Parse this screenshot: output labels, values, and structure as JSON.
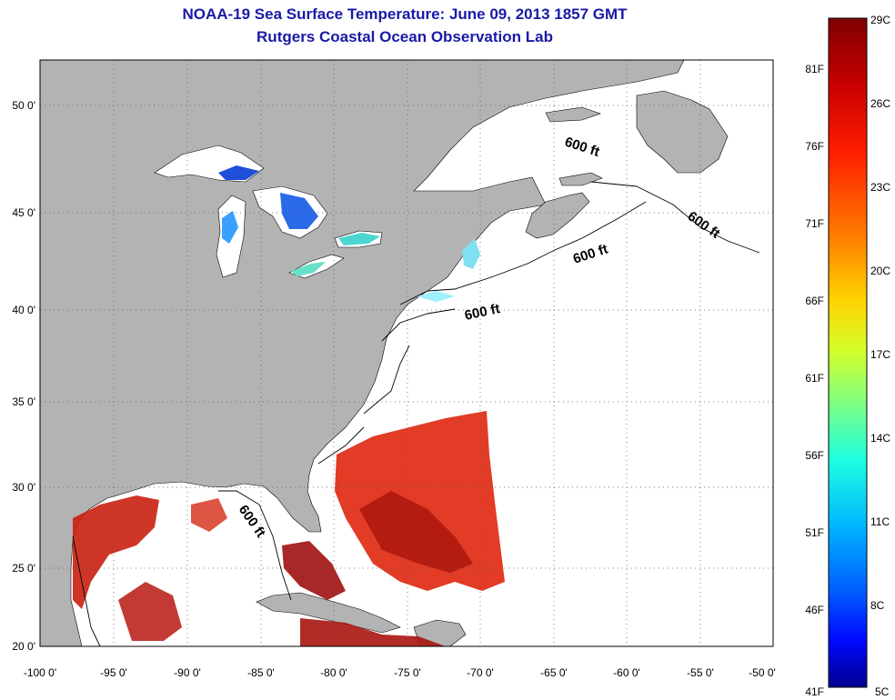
{
  "title": "NOAA-19 Sea Surface Temperature:  June 09, 2013 1857 GMT",
  "subtitle": "Rutgers Coastal Ocean Observation Lab",
  "map": {
    "lon_labels": [
      "-100 0'",
      "-95 0'",
      "-90 0'",
      "-85 0'",
      "-80 0'",
      "-75 0'",
      "-70 0'",
      "-65 0'",
      "-60 0'",
      "-55 0'",
      "-50 0'"
    ],
    "lat_labels": [
      "50 0'",
      "45 0'",
      "40 0'",
      "35 0'",
      "30 0'",
      "25 0'",
      "20 0'"
    ],
    "contour_labels": [
      "600 ft",
      "600 ft",
      "600 ft",
      "600 ft",
      "600 ft"
    ]
  },
  "colorbar": {
    "c_labels": [
      "29C",
      "26C",
      "23C",
      "20C",
      "17C",
      "14C",
      "11C",
      "8C",
      "5C"
    ],
    "f_labels": [
      "81F",
      "76F",
      "71F",
      "66F",
      "61F",
      "56F",
      "51F",
      "46F",
      "41F"
    ],
    "gradient": [
      "#800000",
      "#c80000",
      "#ff1e00",
      "#ff7800",
      "#ffd200",
      "#d2ff2d",
      "#78ff87",
      "#1effe1",
      "#00b4ff",
      "#005aff",
      "#0008ff",
      "#00008f"
    ]
  },
  "colors": {
    "land": "#b3b3b3",
    "ocean": "#ffffff",
    "title": "#1a1aa6",
    "warm_sst": "#e0301a",
    "cold_sst": "#1e4fd8"
  }
}
